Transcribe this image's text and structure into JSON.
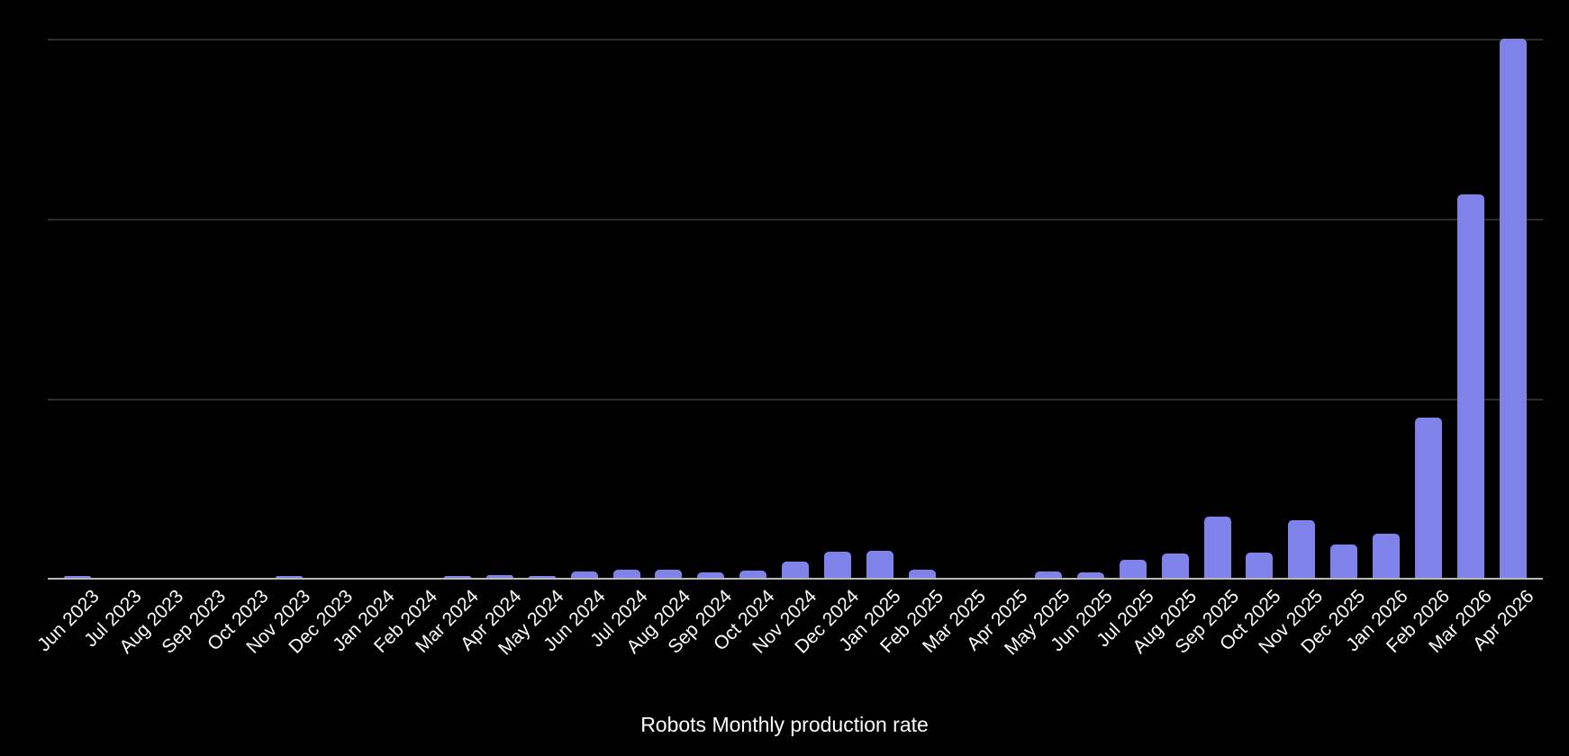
{
  "page": {
    "background": "#000000"
  },
  "chart": {
    "bar_color": "#7e82e9",
    "gridline_color": "#2e2e2e",
    "axis_line_color": "#b8b8b0",
    "text_color": "#ffffff",
    "y_axis_tick_labels_visible": false
  },
  "chart_data": {
    "type": "bar",
    "title": "Robots Monthly production rate",
    "xlabel": "",
    "ylabel": "",
    "legend": "none",
    "grid": "horizontal",
    "values_unit": "relative units, y-axis unlabeled; tallest bar (Apr 2026) = 100",
    "ylim": [
      0,
      100
    ],
    "gridline_levels": [
      33.3,
      66.7,
      100
    ],
    "categories": [
      "Jun 2023",
      "Jul 2023",
      "Aug 2023",
      "Sep 2023",
      "Oct 2023",
      "Nov 2023",
      "Dec 2023",
      "Jan 2024",
      "Feb 2024",
      "Mar 2024",
      "Apr 2024",
      "May 2024",
      "Jun 2024",
      "Jul 2024",
      "Aug 2024",
      "Sep 2024",
      "Oct 2024",
      "Nov 2024",
      "Dec 2024",
      "Jan 2025",
      "Feb 2025",
      "Mar 2025",
      "Apr 2025",
      "May 2025",
      "Jun 2025",
      "Jul 2025",
      "Aug 2025",
      "Sep 2025",
      "Oct 2025",
      "Nov 2025",
      "Dec 2025",
      "Jan 2026",
      "Feb 2026",
      "Mar 2026",
      "Apr 2026"
    ],
    "values": [
      0.5,
      0,
      0,
      0,
      0,
      0.5,
      0,
      0,
      0,
      0.5,
      0.7,
      0.5,
      1.3,
      1.7,
      1.7,
      1.2,
      1.5,
      3.2,
      5.0,
      5.2,
      1.7,
      0,
      0,
      1.3,
      1.2,
      3.5,
      4.7,
      11.5,
      4.8,
      10.9,
      6.4,
      8.4,
      29.8,
      71.1,
      100
    ]
  }
}
